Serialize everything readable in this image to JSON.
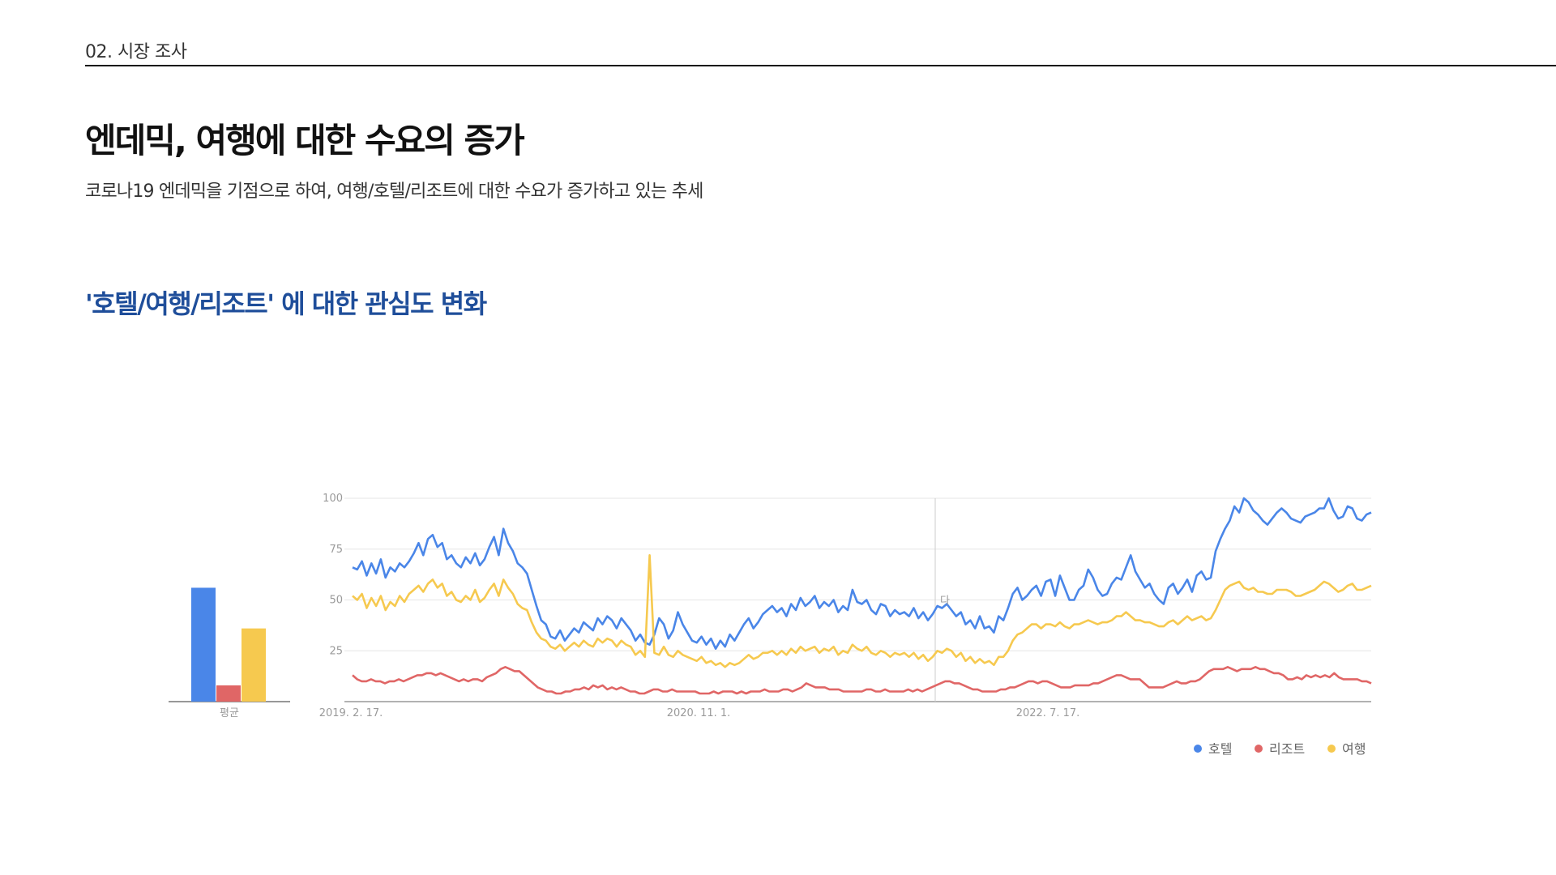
{
  "header": {
    "section_label": "02. 시장 조사",
    "title": "엔데믹, 여행에 대한 수요의 증가",
    "subtitle": "코로나19 엔데믹을 기점으로 하여, 여행/호텔/리조트에 대한 수요가 증가하고 있는 추세",
    "chart_heading": "'호텔/여행/리조트' 에 대한 관심도 변화"
  },
  "chart_data": [
    {
      "type": "bar",
      "categories": [
        "평균"
      ],
      "series": [
        {
          "name": "호텔",
          "color": "#4a86e8",
          "values": [
            56
          ]
        },
        {
          "name": "리조트",
          "color": "#e06666",
          "values": [
            8
          ]
        },
        {
          "name": "여행",
          "color": "#f6c94f",
          "values": [
            36
          ]
        }
      ],
      "ylim": [
        0,
        100
      ]
    },
    {
      "type": "line",
      "x_tick_labels": [
        "2019. 2. 17.",
        "2020. 11. 1.",
        "2022. 7. 17."
      ],
      "y_ticks": [
        25,
        50,
        75,
        100
      ],
      "ylim": [
        0,
        100
      ],
      "grid": true,
      "legend_position": "bottom-right",
      "hover_marker_label": "다",
      "series": [
        {
          "name": "호텔",
          "color": "#4a86e8",
          "values": [
            66,
            65,
            69,
            62,
            68,
            63,
            70,
            61,
            66,
            64,
            68,
            66,
            69,
            73,
            78,
            72,
            80,
            82,
            76,
            78,
            70,
            72,
            68,
            66,
            71,
            68,
            73,
            67,
            70,
            76,
            81,
            72,
            85,
            78,
            74,
            68,
            66,
            63,
            55,
            47,
            40,
            38,
            32,
            31,
            35,
            30,
            33,
            36,
            34,
            39,
            37,
            35,
            41,
            38,
            42,
            40,
            36,
            41,
            38,
            35,
            30,
            33,
            29,
            28,
            33,
            41,
            38,
            31,
            35,
            44,
            38,
            34,
            30,
            29,
            32,
            28,
            31,
            26,
            30,
            27,
            33,
            30,
            34,
            38,
            41,
            36,
            39,
            43,
            45,
            47,
            44,
            46,
            42,
            48,
            45,
            51,
            47,
            49,
            52,
            46,
            49,
            47,
            50,
            44,
            47,
            45,
            55,
            49,
            48,
            50,
            45,
            43,
            48,
            47,
            42,
            45,
            43,
            44,
            42,
            46,
            41,
            44,
            40,
            43,
            47,
            46,
            48,
            45,
            42,
            44,
            38,
            40,
            36,
            42,
            36,
            37,
            34,
            42,
            40,
            46,
            53,
            56,
            50,
            52,
            55,
            57,
            52,
            59,
            60,
            52,
            62,
            56,
            50,
            50,
            55,
            57,
            65,
            61,
            55,
            52,
            53,
            58,
            61,
            60,
            66,
            72,
            64,
            60,
            56,
            58,
            53,
            50,
            48,
            56,
            58,
            53,
            56,
            60,
            54,
            62,
            64,
            60,
            61,
            74,
            80,
            85,
            89,
            96,
            93,
            100,
            98,
            94,
            92,
            89,
            87,
            90,
            93,
            95,
            93,
            90,
            89,
            88,
            91,
            92,
            93,
            95,
            95,
            100,
            94,
            90,
            91,
            96,
            95,
            90,
            89,
            92,
            93
          ],
          "trend_smooth_pts": []
        },
        {
          "name": "리조트",
          "color": "#e06666",
          "values": [
            13,
            11,
            10,
            10,
            11,
            10,
            10,
            9,
            10,
            10,
            11,
            10,
            11,
            12,
            13,
            13,
            14,
            14,
            13,
            14,
            13,
            12,
            11,
            10,
            11,
            10,
            11,
            11,
            10,
            12,
            13,
            14,
            16,
            17,
            16,
            15,
            15,
            13,
            11,
            9,
            7,
            6,
            5,
            5,
            4,
            4,
            5,
            5,
            6,
            6,
            7,
            6,
            8,
            7,
            8,
            6,
            7,
            6,
            7,
            6,
            5,
            5,
            4,
            4,
            5,
            6,
            6,
            5,
            5,
            6,
            5,
            5,
            5,
            5,
            5,
            4,
            4,
            4,
            5,
            4,
            5,
            5,
            5,
            4,
            5,
            4,
            5,
            5,
            5,
            6,
            5,
            5,
            5,
            6,
            6,
            5,
            6,
            7,
            9,
            8,
            7,
            7,
            7,
            6,
            6,
            6,
            5,
            5,
            5,
            5,
            5,
            6,
            6,
            5,
            5,
            6,
            5,
            5,
            5,
            5,
            6,
            5,
            6,
            5,
            6,
            7,
            8,
            9,
            10,
            10,
            9,
            9,
            8,
            7,
            6,
            6,
            5,
            5,
            5,
            5,
            6,
            6,
            7,
            7,
            8,
            9,
            10,
            10,
            9,
            10,
            10,
            9,
            8,
            7,
            7,
            7,
            8,
            8,
            8,
            8,
            9,
            9,
            10,
            11,
            12,
            13,
            13,
            12,
            11,
            11,
            11,
            9,
            7,
            7,
            7,
            7,
            8,
            9,
            10,
            9,
            9,
            10,
            10,
            11,
            13,
            15,
            16,
            16,
            16,
            17,
            16,
            15,
            16,
            16,
            16,
            17,
            16,
            16,
            15,
            14,
            14,
            13,
            11,
            11,
            12,
            11,
            13,
            12,
            13,
            12,
            13,
            12,
            14,
            12,
            11,
            11,
            11,
            11,
            10,
            10,
            9
          ]
        },
        {
          "name": "여행",
          "color": "#f6c94f",
          "values": [
            52,
            50,
            53,
            46,
            51,
            47,
            52,
            45,
            49,
            47,
            52,
            49,
            53,
            55,
            57,
            54,
            58,
            60,
            56,
            58,
            52,
            54,
            50,
            49,
            52,
            50,
            55,
            49,
            51,
            55,
            58,
            52,
            60,
            56,
            53,
            48,
            46,
            45,
            39,
            34,
            31,
            30,
            27,
            26,
            28,
            25,
            27,
            29,
            27,
            30,
            28,
            27,
            31,
            29,
            31,
            30,
            27,
            30,
            28,
            27,
            23,
            25,
            22,
            72,
            24,
            23,
            27,
            23,
            22,
            25,
            23,
            22,
            21,
            20,
            22,
            19,
            20,
            18,
            19,
            17,
            19,
            18,
            19,
            21,
            23,
            21,
            22,
            24,
            24,
            25,
            23,
            25,
            23,
            26,
            24,
            27,
            25,
            26,
            27,
            24,
            26,
            25,
            27,
            23,
            25,
            24,
            28,
            26,
            25,
            27,
            24,
            23,
            25,
            24,
            22,
            24,
            23,
            24,
            22,
            24,
            21,
            23,
            20,
            22,
            25,
            24,
            26,
            25,
            22,
            24,
            20,
            22,
            19,
            21,
            19,
            20,
            18,
            22,
            22,
            25,
            30,
            33,
            34,
            36,
            38,
            38,
            36,
            38,
            38,
            37,
            39,
            37,
            36,
            38,
            38,
            39,
            40,
            39,
            38,
            39,
            39,
            40,
            42,
            42,
            44,
            42,
            40,
            40,
            39,
            39,
            38,
            37,
            37,
            39,
            40,
            38,
            40,
            42,
            40,
            41,
            42,
            40,
            41,
            45,
            50,
            55,
            57,
            58,
            59,
            56,
            55,
            56,
            54,
            54,
            53,
            53,
            55,
            55,
            55,
            54,
            52,
            52,
            53,
            54,
            55,
            57,
            59,
            58,
            56,
            54,
            55,
            57,
            58,
            55,
            55,
            56,
            57
          ]
        }
      ]
    }
  ]
}
